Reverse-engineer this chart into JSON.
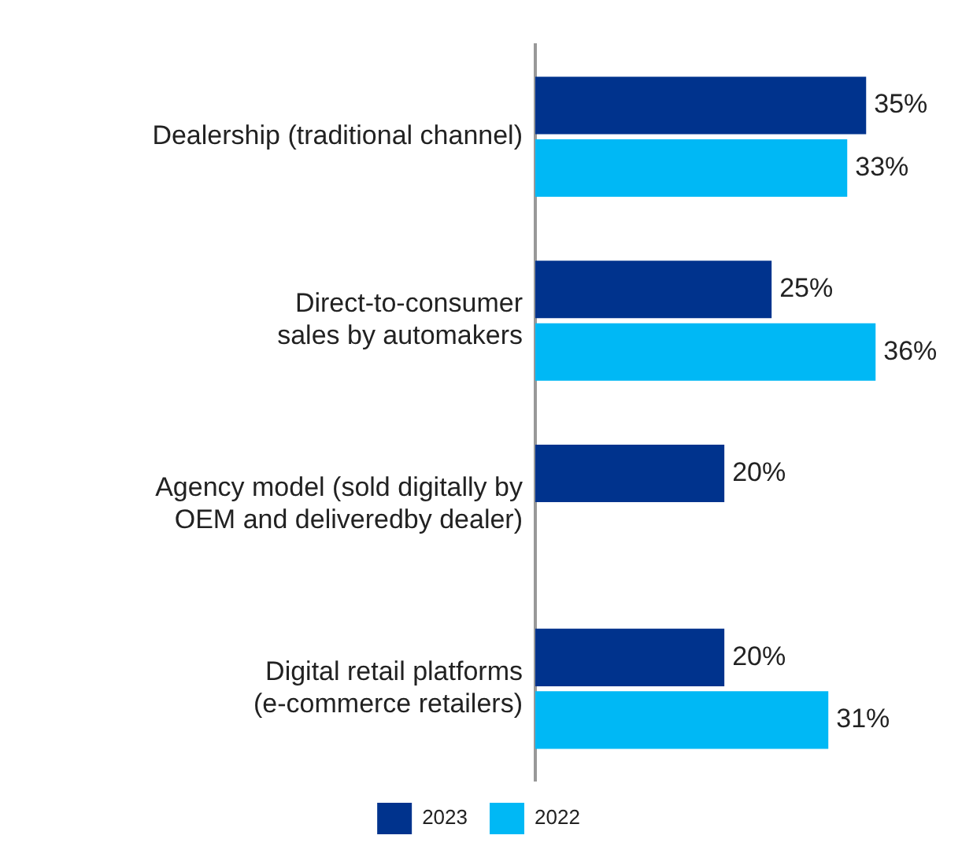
{
  "chart_data": {
    "type": "bar",
    "orientation": "horizontal",
    "categories": [
      "Dealership (traditional channel)",
      "Direct-to-consumer sales by automakers",
      "Agency model (sold digitally by OEM and deliveredby dealer)",
      "Digital retail platforms (e-commerce retailers)"
    ],
    "series": [
      {
        "name": "2023",
        "color": "#00338d",
        "values": [
          35,
          25,
          20,
          20
        ],
        "value_labels": [
          "35%",
          "25%",
          "20%",
          "20%"
        ]
      },
      {
        "name": "2022",
        "color": "#00b8f5",
        "values": [
          33,
          36,
          null,
          31
        ],
        "value_labels": [
          "33%",
          "36%",
          null,
          "31%"
        ]
      }
    ],
    "grid": false,
    "legend": "bottom",
    "tick_labels": "y"
  }
}
